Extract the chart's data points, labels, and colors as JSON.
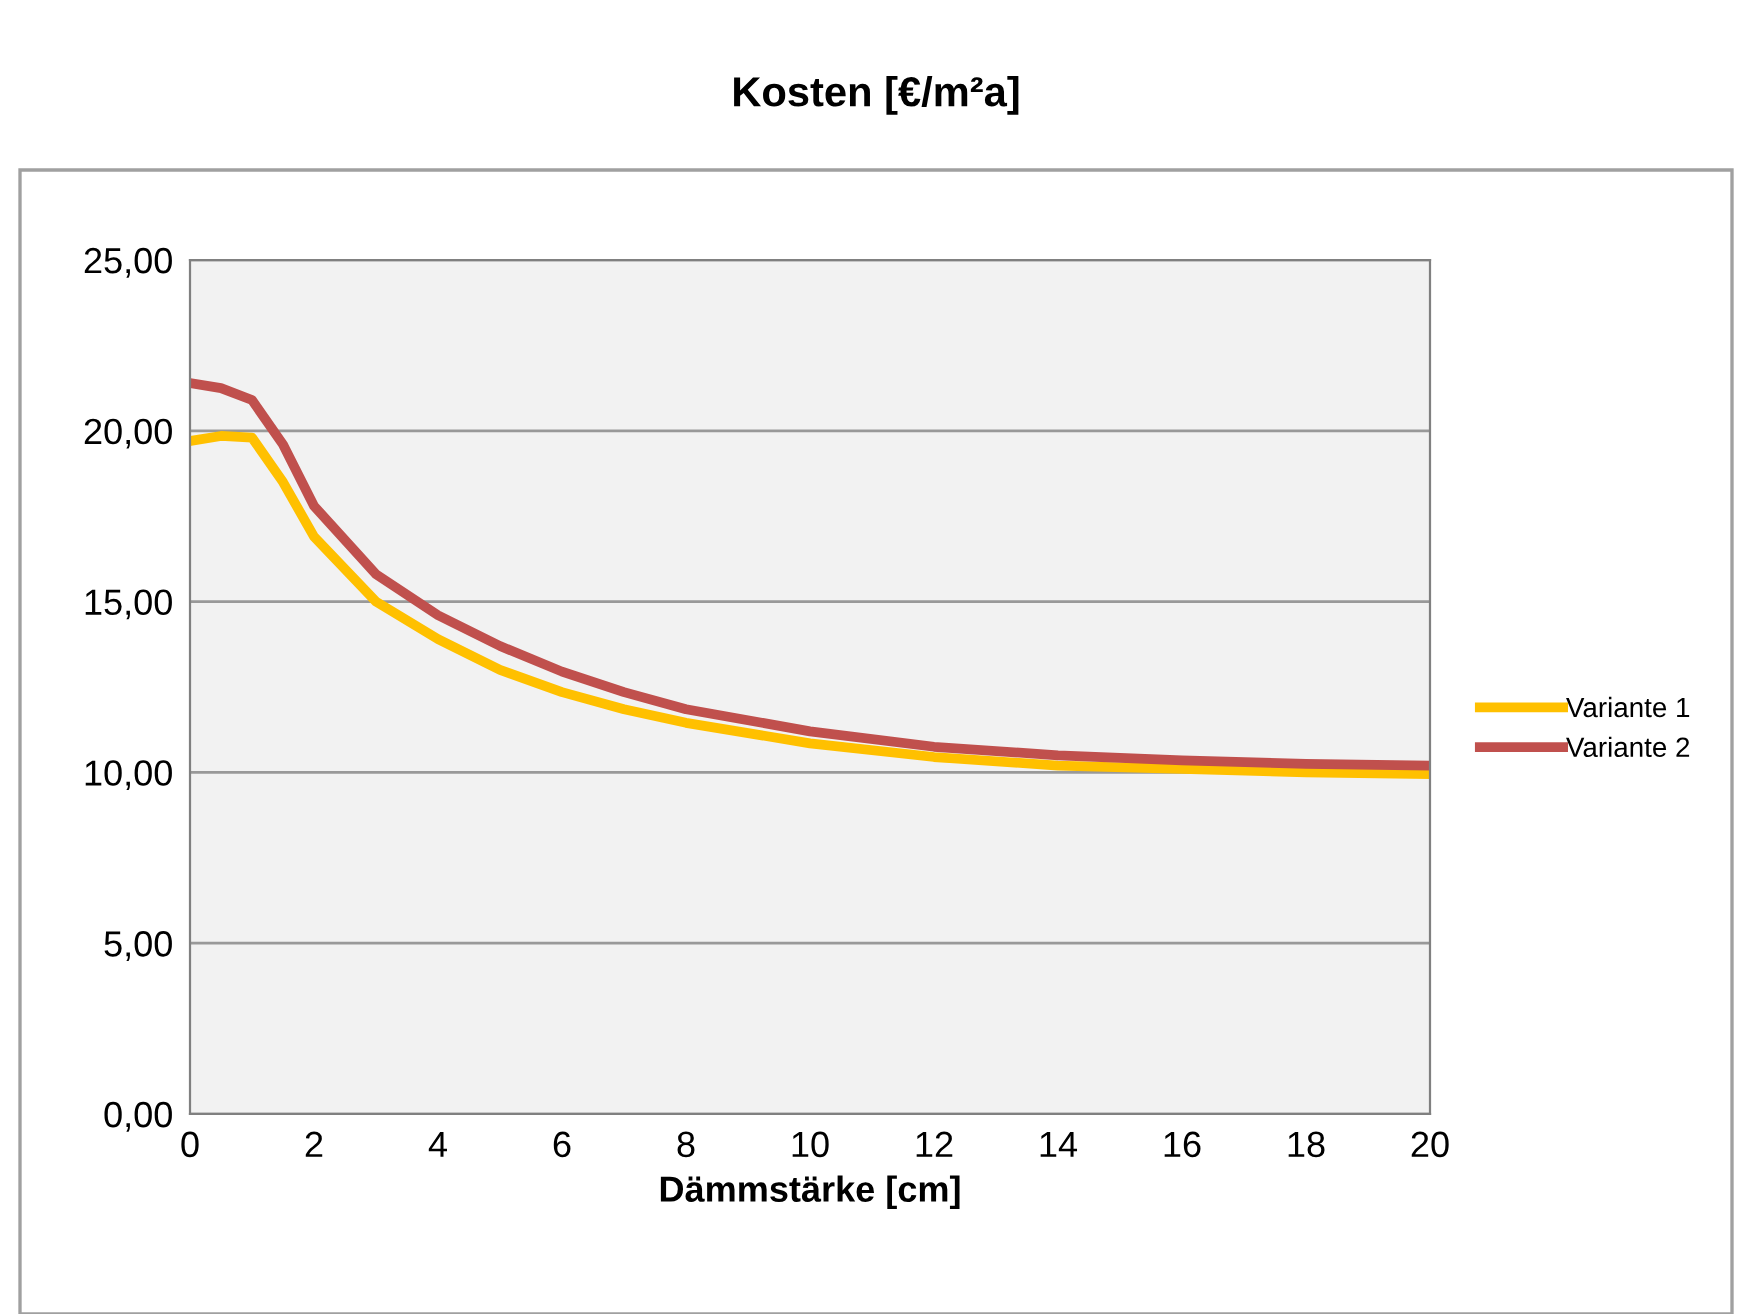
{
  "chart_data": {
    "type": "line",
    "title": "Kosten [€/m²a]",
    "xlabel": "Dämmstärke [cm]",
    "x": [
      0,
      0.5,
      1,
      1.5,
      2,
      3,
      4,
      5,
      6,
      7,
      8,
      10,
      12,
      14,
      16,
      18,
      20
    ],
    "series": [
      {
        "name": "Variante 1",
        "color": "#ffc000",
        "values": [
          19.7,
          19.85,
          19.8,
          18.5,
          16.9,
          15.0,
          13.9,
          13.0,
          12.35,
          11.85,
          11.45,
          10.85,
          10.45,
          10.2,
          10.1,
          10.0,
          9.95
        ]
      },
      {
        "name": "Variante 2",
        "color": "#c0504d",
        "values": [
          21.4,
          21.25,
          20.9,
          19.6,
          17.8,
          15.8,
          14.6,
          13.7,
          12.95,
          12.35,
          11.85,
          11.2,
          10.75,
          10.5,
          10.35,
          10.25,
          10.2
        ]
      }
    ],
    "xlim": [
      0,
      20
    ],
    "xticks": [
      0,
      2,
      4,
      6,
      8,
      10,
      12,
      14,
      16,
      18,
      20
    ],
    "ylim": [
      0,
      25
    ],
    "yticks": [
      {
        "value": 0,
        "label": "0,00"
      },
      {
        "value": 5,
        "label": "5,00"
      },
      {
        "value": 10,
        "label": "10,00"
      },
      {
        "value": 15,
        "label": "15,00"
      },
      {
        "value": 20,
        "label": "20,00"
      },
      {
        "value": 25,
        "label": "25,00"
      }
    ],
    "grid": "y",
    "legend": "right",
    "marker": "none",
    "line_style": "solid"
  }
}
